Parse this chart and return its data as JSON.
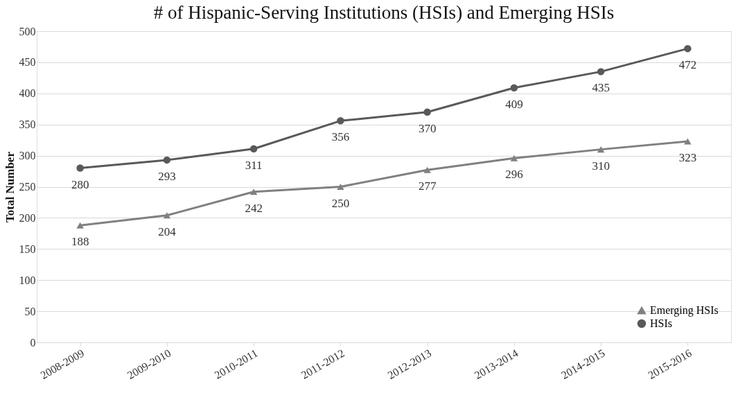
{
  "chart_data": {
    "type": "line",
    "title": "# of Hispanic-Serving Institutions (HSIs) and Emerging HSIs",
    "ylabel": "Total Number",
    "categories": [
      "2008-2009",
      "2009-2010",
      "2010-2011",
      "2011-2012",
      "2012-2013",
      "2013-2014",
      "2014-2015",
      "2015-2016"
    ],
    "series": [
      {
        "name": "Emerging HSIs",
        "color": "#808080",
        "marker": "triangle",
        "values": [
          188,
          204,
          242,
          250,
          277,
          296,
          310,
          323
        ]
      },
      {
        "name": "HSIs",
        "color": "#595959",
        "marker": "circle",
        "values": [
          280,
          293,
          311,
          356,
          370,
          409,
          435,
          472
        ]
      }
    ],
    "ylim": [
      0,
      500
    ],
    "yticks": [
      0,
      50,
      100,
      150,
      200,
      250,
      300,
      350,
      400,
      450,
      500
    ],
    "grid": "y",
    "legend": "bottom right",
    "data_labels": true,
    "line_style": "solid"
  }
}
